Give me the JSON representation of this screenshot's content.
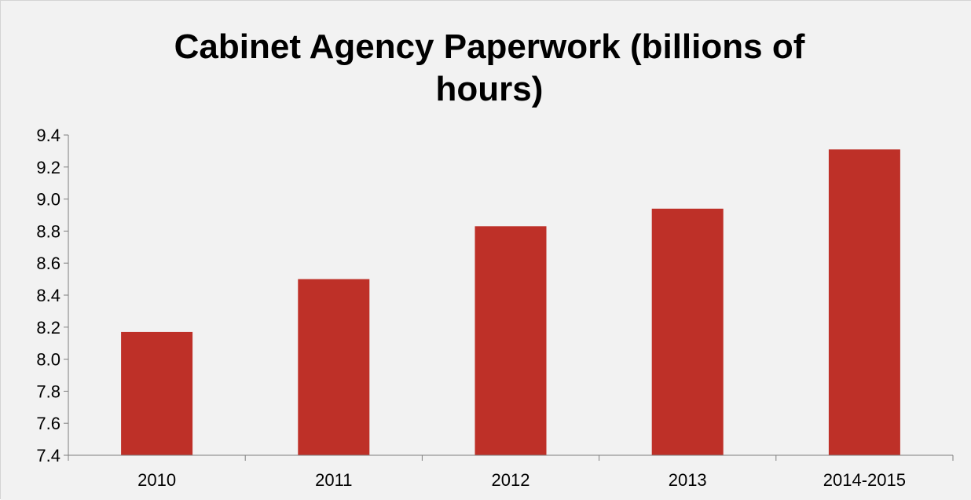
{
  "chart_data": {
    "type": "bar",
    "title_lines": [
      "Cabinet Agency Paperwork (billions of",
      "hours)"
    ],
    "categories": [
      "2010",
      "2011",
      "2012",
      "2013",
      "2014-2015"
    ],
    "values": [
      8.17,
      8.5,
      8.83,
      8.94,
      9.31
    ],
    "ylim": [
      7.4,
      9.4
    ],
    "yticks": [
      "7.4",
      "7.6",
      "7.8",
      "8.0",
      "8.2",
      "8.4",
      "8.6",
      "8.8",
      "9.0",
      "9.2",
      "9.4"
    ],
    "xlabel": "",
    "ylabel": "",
    "grid": false,
    "legend": "none"
  },
  "colors": {
    "background": "#f2f2f2",
    "bar": "#be3028",
    "axis": "#7f7f7f"
  }
}
